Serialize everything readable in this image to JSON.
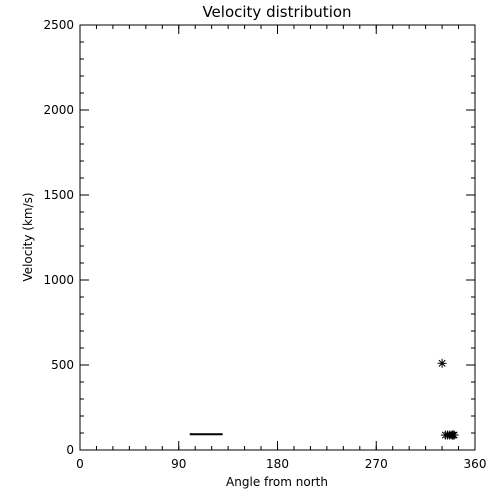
{
  "chart_data": {
    "type": "scatter",
    "title": "Velocity distribution",
    "xlabel": "Angle from north",
    "ylabel": "Velocity (km/s)",
    "xlim": [
      0,
      360
    ],
    "ylim": [
      0,
      2500
    ],
    "xticks": [
      0,
      90,
      180,
      270,
      360
    ],
    "yticks": [
      0,
      500,
      1000,
      1500,
      2000,
      2500
    ],
    "xminor_step": 15,
    "yminor_step": 100,
    "grid": false,
    "marker": "asterisk",
    "points": [
      {
        "x": 330,
        "y": 510
      },
      {
        "x": 333,
        "y": 88
      },
      {
        "x": 335,
        "y": 88
      },
      {
        "x": 337,
        "y": 88
      },
      {
        "x": 339,
        "y": 88
      },
      {
        "x": 340,
        "y": 88
      },
      {
        "x": 341,
        "y": 88
      }
    ],
    "segments": [
      {
        "x1": 100,
        "y1": 93,
        "x2": 130,
        "y2": 93
      }
    ],
    "colors": {
      "foreground": "#000000",
      "background": "#ffffff"
    }
  }
}
